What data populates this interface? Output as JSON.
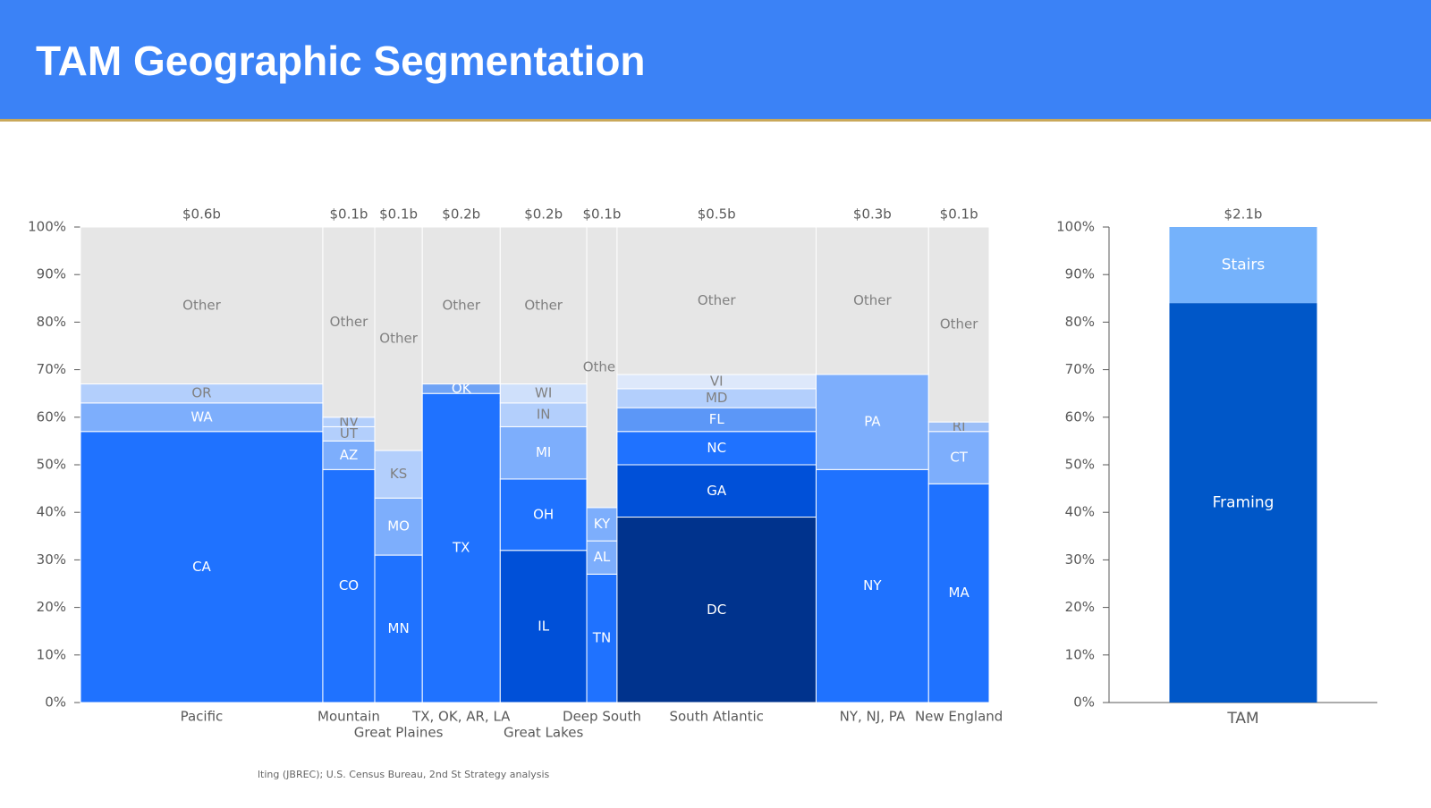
{
  "header": {
    "title": "TAM Geographic Segmentation"
  },
  "chart_data": [
    {
      "type": "mekko",
      "ylim": [
        0,
        100
      ],
      "yticks": [
        {
          "value": 0,
          "label": "0%"
        },
        {
          "value": 10,
          "label": "10%"
        },
        {
          "value": 20,
          "label": "20%"
        },
        {
          "value": 30,
          "label": "30%"
        },
        {
          "value": 40,
          "label": "40%"
        },
        {
          "value": 50,
          "label": "50%"
        },
        {
          "value": 60,
          "label": "60%"
        },
        {
          "value": 70,
          "label": "70%"
        },
        {
          "value": 80,
          "label": "80%"
        },
        {
          "value": 90,
          "label": "90%"
        },
        {
          "value": 100,
          "label": "100%"
        }
      ],
      "columns": [
        {
          "name": "Pacific",
          "value": 0.56,
          "value_label": "$0.6b",
          "segments": [
            {
              "name": "CA",
              "value": 57,
              "color": "#1f72ff"
            },
            {
              "name": "WA",
              "value": 6,
              "color": "#7daefc"
            },
            {
              "name": "OR",
              "value": 4,
              "color": "#b3cffc"
            },
            {
              "name": "Other",
              "value": 33,
              "color": "#e6e6e6"
            }
          ]
        },
        {
          "name": "Mountain",
          "value": 0.12,
          "value_label": "$0.1b",
          "segments": [
            {
              "name": "CO",
              "value": 49,
              "color": "#1f72ff"
            },
            {
              "name": "AZ",
              "value": 6,
              "color": "#7daefc"
            },
            {
              "name": "UT",
              "value": 3,
              "color": "#b3cffc"
            },
            {
              "name": "NV",
              "value": 2,
              "color": "#b3cffc"
            },
            {
              "name": "Other",
              "value": 40,
              "color": "#e6e6e6"
            }
          ]
        },
        {
          "name": "Great Plaines",
          "value": 0.11,
          "value_label": "$0.1b",
          "segments": [
            {
              "name": "MN",
              "value": 31,
              "color": "#1f72ff"
            },
            {
              "name": "MO",
              "value": 12,
              "color": "#7daefc"
            },
            {
              "name": "KS",
              "value": 10,
              "color": "#b3cffc"
            },
            {
              "name": "Other",
              "value": 47,
              "color": "#e6e6e6"
            }
          ]
        },
        {
          "name": "TX, OK, AR, LA",
          "value": 0.18,
          "value_label": "$0.2b",
          "segments": [
            {
              "name": "TX",
              "value": 65,
              "color": "#1f72ff"
            },
            {
              "name": "OK",
              "value": 2,
              "color": "#6fa3f5"
            },
            {
              "name": "Other",
              "value": 33,
              "color": "#e6e6e6"
            }
          ]
        },
        {
          "name": "Great Lakes",
          "value": 0.2,
          "value_label": "$0.2b",
          "segments": [
            {
              "name": "IL",
              "value": 32,
              "color": "#0050d8"
            },
            {
              "name": "OH",
              "value": 15,
              "color": "#1f72ff"
            },
            {
              "name": "MI",
              "value": 11,
              "color": "#7daefc"
            },
            {
              "name": "IN",
              "value": 5,
              "color": "#b3cffc"
            },
            {
              "name": "WI",
              "value": 4,
              "color": "#cfe0fb"
            },
            {
              "name": "Other",
              "value": 33,
              "color": "#e6e6e6"
            }
          ]
        },
        {
          "name": "Deep South",
          "value": 0.07,
          "value_label": "$0.1b",
          "segments": [
            {
              "name": "TN",
              "value": 27,
              "color": "#1f72ff"
            },
            {
              "name": "AL",
              "value": 7,
              "color": "#7daefc"
            },
            {
              "name": "KY",
              "value": 7,
              "color": "#7daefc"
            },
            {
              "name": "Other",
              "value": 59,
              "color": "#e6e6e6"
            }
          ]
        },
        {
          "name": "South Atlantic",
          "value": 0.46,
          "value_label": "$0.5b",
          "segments": [
            {
              "name": "DC",
              "value": 39,
              "color": "#00338d"
            },
            {
              "name": "GA",
              "value": 11,
              "color": "#0050d8"
            },
            {
              "name": "NC",
              "value": 7,
              "color": "#1f72ff"
            },
            {
              "name": "FL",
              "value": 5,
              "color": "#5c97f7"
            },
            {
              "name": "MD",
              "value": 4,
              "color": "#b3cffc"
            },
            {
              "name": "VI",
              "value": 3,
              "color": "#dde8fb"
            },
            {
              "name": "Other",
              "value": 31,
              "color": "#e6e6e6"
            }
          ]
        },
        {
          "name": "NY, NJ, PA",
          "value": 0.26,
          "value_label": "$0.3b",
          "segments": [
            {
              "name": "NY",
              "value": 49,
              "color": "#1f72ff"
            },
            {
              "name": "PA",
              "value": 20,
              "color": "#7daefc"
            },
            {
              "name": "Other",
              "value": 31,
              "color": "#e6e6e6"
            }
          ]
        },
        {
          "name": "New England",
          "value": 0.14,
          "value_label": "$0.1b",
          "segments": [
            {
              "name": "MA",
              "value": 46,
              "color": "#1f72ff"
            },
            {
              "name": "CT",
              "value": 11,
              "color": "#7daefc"
            },
            {
              "name": "RI",
              "value": 2,
              "color": "#9cbff8"
            },
            {
              "name": "Other",
              "value": 41,
              "color": "#e6e6e6"
            }
          ]
        }
      ]
    },
    {
      "type": "bar",
      "ylim": [
        0,
        100
      ],
      "yticks": [
        {
          "value": 0,
          "label": "0%"
        },
        {
          "value": 10,
          "label": "10%"
        },
        {
          "value": 20,
          "label": "20%"
        },
        {
          "value": 30,
          "label": "30%"
        },
        {
          "value": 40,
          "label": "40%"
        },
        {
          "value": 50,
          "label": "50%"
        },
        {
          "value": 60,
          "label": "60%"
        },
        {
          "value": 70,
          "label": "70%"
        },
        {
          "value": 80,
          "label": "80%"
        },
        {
          "value": 90,
          "label": "90%"
        },
        {
          "value": 100,
          "label": "100%"
        }
      ],
      "categories": [
        "TAM"
      ],
      "total_label": "$2.1b",
      "series": [
        {
          "name": "Framing",
          "color": "#0057c8",
          "values": [
            84
          ]
        },
        {
          "name": "Stairs",
          "color": "#75b2fb",
          "values": [
            16
          ]
        }
      ]
    }
  ],
  "footnote": "lting (JBREC); U.S. Census Bureau, 2nd St Strategy analysis"
}
